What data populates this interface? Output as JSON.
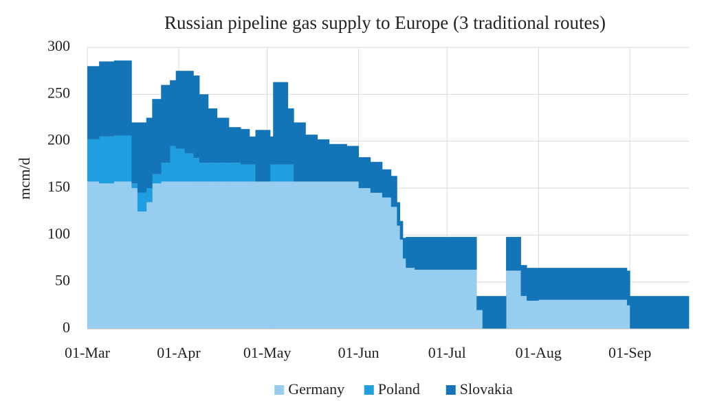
{
  "chart_data": {
    "type": "stacked-area",
    "title": "Russian pipeline gas supply to Europe (3 traditional routes)",
    "y_label": "mcm/d",
    "x": [
      "01-Mar",
      "05-Mar",
      "10-Mar",
      "16-Mar",
      "18-Mar",
      "21-Mar",
      "23-Mar",
      "26-Mar",
      "29-Mar",
      "31-Mar",
      "03-Apr",
      "06-Apr",
      "08-Apr",
      "11-Apr",
      "14-Apr",
      "18-Apr",
      "22-Apr",
      "25-Apr",
      "27-Apr",
      "02-May",
      "03-May",
      "08-May",
      "10-May",
      "14-May",
      "18-May",
      "22-May",
      "28-May",
      "01-Jun",
      "05-Jun",
      "09-Jun",
      "12-Jun",
      "14-Jun",
      "15-Jun",
      "16-Jun",
      "17-Jun",
      "20-Jun",
      "11-Jul",
      "13-Jul",
      "21-Jul",
      "26-Jul",
      "28-Jul",
      "01-Aug",
      "31-Aug",
      "01-Sep"
    ],
    "series": [
      {
        "name": "Germany",
        "color": "#97cdee",
        "values": [
          157,
          155,
          157,
          150,
          125,
          135,
          155,
          157,
          157,
          157,
          157,
          157,
          157,
          157,
          157,
          157,
          157,
          157,
          157,
          157,
          157,
          157,
          157,
          157,
          157,
          157,
          157,
          150,
          145,
          140,
          130,
          110,
          95,
          75,
          65,
          63,
          20,
          0,
          62,
          35,
          30,
          31,
          25,
          0
        ]
      },
      {
        "name": "Poland",
        "color": "#1f9fe0",
        "values": [
          45,
          50,
          49,
          5,
          20,
          15,
          10,
          20,
          38,
          35,
          30,
          25,
          20,
          20,
          20,
          20,
          18,
          18,
          0,
          18,
          18,
          18,
          0,
          0,
          0,
          0,
          0,
          0,
          0,
          0,
          0,
          0,
          0,
          0,
          0,
          0,
          0,
          0,
          0,
          0,
          0,
          0,
          0,
          0
        ]
      },
      {
        "name": "Slovakia",
        "color": "#1375b8",
        "values": [
          78,
          80,
          80,
          65,
          75,
          75,
          80,
          83,
          70,
          83,
          88,
          88,
          73,
          58,
          48,
          38,
          38,
          30,
          55,
          30,
          88,
          60,
          63,
          50,
          45,
          40,
          38,
          33,
          33,
          30,
          33,
          25,
          20,
          22,
          33,
          35,
          15,
          35,
          36,
          33,
          35,
          34,
          37,
          35
        ]
      }
    ],
    "xlim": [
      "01-Mar",
      "21-Sep"
    ],
    "xticks": [
      "01-Mar",
      "01-Apr",
      "01-May",
      "01-Jun",
      "01-Jul",
      "01-Aug",
      "01-Sep"
    ],
    "ylim": [
      0,
      300
    ],
    "yticks": [
      0,
      50,
      100,
      150,
      200,
      250,
      300
    ],
    "grid": true,
    "legend": "bottom"
  }
}
